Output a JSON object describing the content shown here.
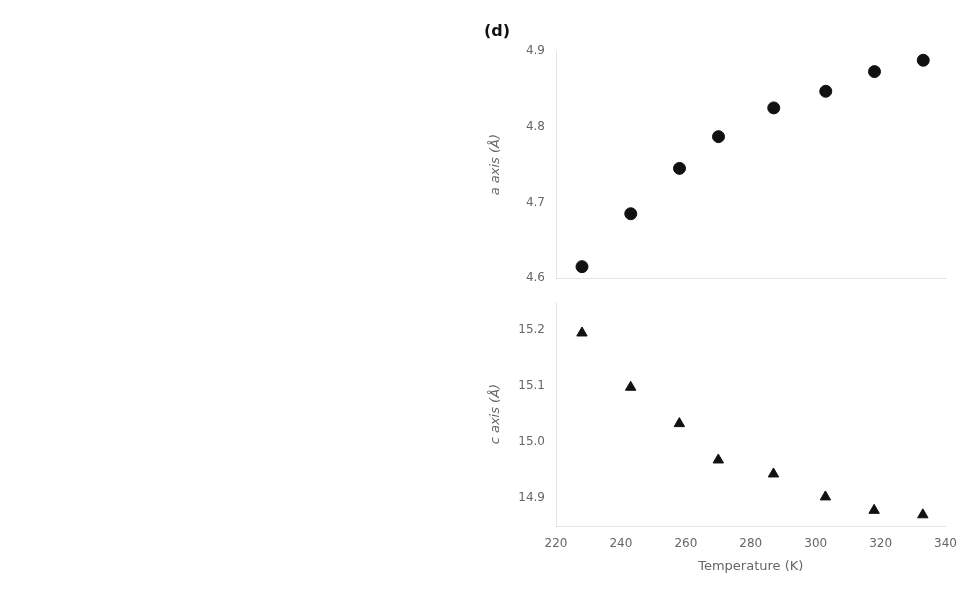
{
  "chart_data": [
    {
      "type": "scatter",
      "title": "(d)",
      "x": [
        228,
        243,
        258,
        270,
        287,
        303,
        318,
        333
      ],
      "series": [
        {
          "name": "a axis",
          "color": "#111111",
          "marker": "circle",
          "values": [
            4.615,
            4.685,
            4.745,
            4.787,
            4.825,
            4.847,
            4.873,
            4.888
          ]
        }
      ],
      "ylabel": "a axis (Å)",
      "xlim": [
        220,
        340
      ],
      "xticks": [
        220,
        240,
        260,
        280,
        300,
        320,
        340
      ],
      "ylim": [
        4.6,
        4.9
      ],
      "yticks": [
        4.6,
        4.7,
        4.8,
        4.9
      ],
      "tick_labels": "y",
      "grid": false
    },
    {
      "type": "scatter",
      "x": [
        228,
        243,
        258,
        270,
        287,
        303,
        318,
        333
      ],
      "series": [
        {
          "name": "c axis",
          "color": "#111111",
          "marker": "triangle",
          "values": [
            15.195,
            15.098,
            15.033,
            14.968,
            14.943,
            14.902,
            14.878,
            14.87
          ]
        }
      ],
      "xlabel": "Temperature (K)",
      "ylabel": "c axis (Å)",
      "xlim": [
        220,
        340
      ],
      "xticks": [
        220,
        240,
        260,
        280,
        300,
        320,
        340
      ],
      "ylim": [
        14.85,
        15.25
      ],
      "yticks": [
        14.9,
        {
          "value": 15.0,
          "label": "15.0"
        },
        15.1,
        15.2
      ],
      "grid": false
    }
  ]
}
